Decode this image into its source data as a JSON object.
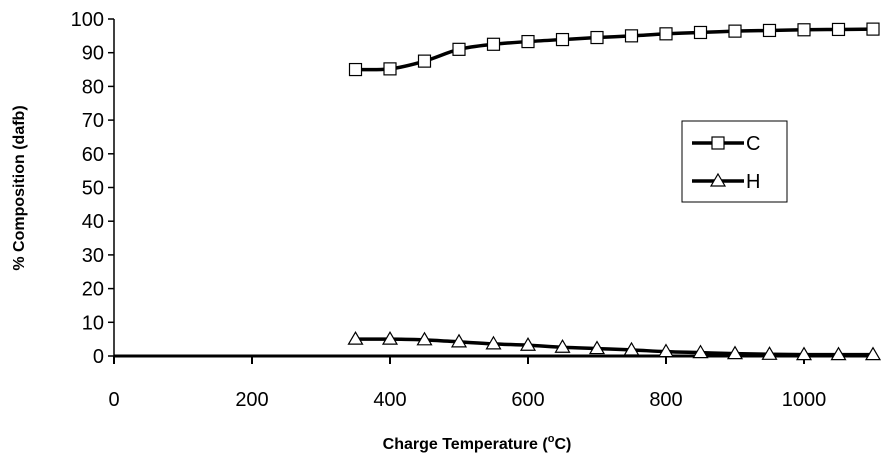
{
  "chart_data": {
    "type": "line",
    "title": "",
    "xlabel": "Charge Temperature (",
    "xlabel_sup": "o",
    "xlabel_end": "C)",
    "ylabel": "% Composition  (dafb)",
    "xlim": [
      0,
      1100
    ],
    "ylim": [
      0,
      100
    ],
    "x_ticks": [
      0,
      200,
      400,
      600,
      800,
      1000
    ],
    "y_ticks": [
      0,
      10,
      20,
      30,
      40,
      50,
      60,
      70,
      80,
      90,
      100
    ],
    "x_tick_labels": [
      "0",
      "200",
      "400",
      "600",
      "800",
      "1000"
    ],
    "y_tick_labels": [
      "0",
      "10",
      "20",
      "30",
      "40",
      "50",
      "60",
      "70",
      "80",
      "90",
      "100"
    ],
    "grid": false,
    "legend_position": "right",
    "series": [
      {
        "name": "C",
        "marker": "square",
        "color": "#000000",
        "x": [
          350,
          400,
          450,
          500,
          550,
          600,
          650,
          700,
          750,
          800,
          850,
          900,
          950,
          1000,
          1050,
          1100
        ],
        "y": [
          85,
          85.2,
          87.5,
          91,
          92.5,
          93.3,
          93.9,
          94.5,
          95,
          95.6,
          96,
          96.4,
          96.6,
          96.8,
          96.9,
          97
        ]
      },
      {
        "name": "H",
        "marker": "triangle",
        "color": "#000000",
        "x": [
          350,
          400,
          450,
          500,
          550,
          600,
          650,
          700,
          750,
          800,
          850,
          900,
          950,
          1000,
          1050,
          1100
        ],
        "y": [
          5,
          5,
          4.8,
          4.2,
          3.6,
          3.2,
          2.6,
          2.2,
          1.8,
          1.3,
          1.0,
          0.7,
          0.5,
          0.4,
          0.4,
          0.4
        ]
      }
    ]
  }
}
